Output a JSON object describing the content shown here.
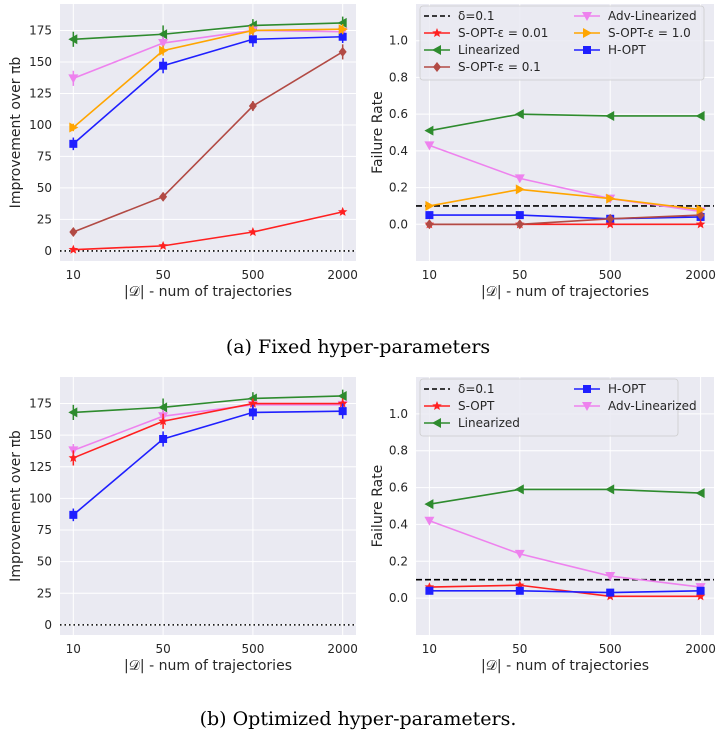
{
  "captions": {
    "a": "(a) Fixed hyper-parameters",
    "b": "(b) Optimized hyper-parameters."
  },
  "chart_data": [
    {
      "id": "a-improvement",
      "type": "line",
      "categories": [
        "10",
        "50",
        "500",
        "2000"
      ],
      "xlabel": "|𝒟| - num of trajectories",
      "ylabel": "Improvement over πb",
      "ylim": [
        -8,
        196
      ],
      "yticks": [
        0,
        25,
        50,
        75,
        100,
        125,
        150,
        175
      ],
      "grid": true,
      "reference_line": {
        "y": 0,
        "style": "dotted",
        "color": "#000000"
      },
      "series": [
        {
          "name": "Linearized",
          "color": "#2e8b2e",
          "marker": "tri-left",
          "values": [
            168,
            172,
            179,
            181
          ],
          "errors": [
            6,
            7,
            5,
            5
          ]
        },
        {
          "name": "Adv-Linearized",
          "color": "#ee82ee",
          "marker": "tri-down",
          "values": [
            137,
            165,
            175,
            174
          ],
          "errors": [
            6,
            5,
            4,
            4
          ]
        },
        {
          "name": "H-OPT",
          "color": "#1f1fff",
          "marker": "square",
          "values": [
            85,
            147,
            168,
            170
          ],
          "errors": [
            5,
            6,
            6,
            5
          ]
        },
        {
          "name": "S-OPT-ε = 0.01",
          "color": "#ff2020",
          "marker": "star",
          "values": [
            1,
            4,
            15,
            31
          ],
          "errors": [
            1,
            1,
            1,
            1
          ]
        },
        {
          "name": "S-OPT-ε = 0.1",
          "color": "#b24a44",
          "marker": "diamond",
          "values": [
            15,
            43,
            115,
            158
          ],
          "errors": [
            2,
            2,
            4,
            6
          ]
        },
        {
          "name": "S-OPT-ε = 1.0",
          "color": "#ffa500",
          "marker": "tri-right",
          "values": [
            98,
            159,
            175,
            176
          ],
          "errors": [
            3,
            4,
            4,
            4
          ]
        }
      ]
    },
    {
      "id": "a-failure",
      "type": "line",
      "categories": [
        "10",
        "50",
        "500",
        "2000"
      ],
      "xlabel": "|𝒟| - num of trajectories",
      "ylabel": "Failure Rate",
      "ylim": [
        -0.2,
        1.2
      ],
      "yticks": [
        0.0,
        0.2,
        0.4,
        0.6,
        0.8,
        1.0
      ],
      "grid": true,
      "legend": {
        "position": "top",
        "columns": 2,
        "order": [
          "delta",
          "S-OPT-ε = 0.01",
          "Linearized",
          "S-OPT-ε = 0.1",
          "Adv-Linearized",
          "S-OPT-ε = 1.0",
          "H-OPT"
        ]
      },
      "reference_line": {
        "y": 0.1,
        "style": "dashed",
        "color": "#000000",
        "name": "δ=0.1"
      },
      "series": [
        {
          "name": "Linearized",
          "color": "#2e8b2e",
          "marker": "tri-left",
          "values": [
            0.51,
            0.6,
            0.59,
            0.59
          ]
        },
        {
          "name": "Adv-Linearized",
          "color": "#ee82ee",
          "marker": "tri-down",
          "values": [
            0.43,
            0.25,
            0.14,
            0.07
          ]
        },
        {
          "name": "H-OPT",
          "color": "#1f1fff",
          "marker": "square",
          "values": [
            0.05,
            0.05,
            0.03,
            0.04
          ]
        },
        {
          "name": "S-OPT-ε = 0.01",
          "color": "#ff2020",
          "marker": "star",
          "values": [
            0.0,
            0.0,
            0.0,
            0.0
          ]
        },
        {
          "name": "S-OPT-ε = 0.1",
          "color": "#b24a44",
          "marker": "diamond",
          "values": [
            0.0,
            0.0,
            0.03,
            0.05
          ]
        },
        {
          "name": "S-OPT-ε = 1.0",
          "color": "#ffa500",
          "marker": "tri-right",
          "values": [
            0.1,
            0.19,
            0.14,
            0.08
          ]
        }
      ]
    },
    {
      "id": "b-improvement",
      "type": "line",
      "categories": [
        "10",
        "50",
        "500",
        "2000"
      ],
      "xlabel": "|𝒟| - num of trajectories",
      "ylabel": "Improvement over πb",
      "ylim": [
        -8,
        196
      ],
      "yticks": [
        0,
        25,
        50,
        75,
        100,
        125,
        150,
        175
      ],
      "grid": true,
      "reference_line": {
        "y": 0,
        "style": "dotted",
        "color": "#000000"
      },
      "series": [
        {
          "name": "Linearized",
          "color": "#2e8b2e",
          "marker": "tri-left",
          "values": [
            168,
            172,
            179,
            181
          ],
          "errors": [
            6,
            7,
            5,
            5
          ]
        },
        {
          "name": "Adv-Linearized",
          "color": "#ee82ee",
          "marker": "tri-down",
          "values": [
            138,
            165,
            174,
            174
          ],
          "errors": [
            5,
            5,
            4,
            4
          ]
        },
        {
          "name": "S-OPT",
          "color": "#ff2020",
          "marker": "star",
          "values": [
            132,
            161,
            175,
            175
          ],
          "errors": [
            6,
            6,
            4,
            4
          ]
        },
        {
          "name": "H-OPT",
          "color": "#1f1fff",
          "marker": "square",
          "values": [
            87,
            147,
            168,
            169
          ],
          "errors": [
            5,
            6,
            6,
            6
          ]
        }
      ]
    },
    {
      "id": "b-failure",
      "type": "line",
      "categories": [
        "10",
        "50",
        "500",
        "2000"
      ],
      "xlabel": "|𝒟| - num of trajectories",
      "ylabel": "Failure Rate",
      "ylim": [
        -0.2,
        1.2
      ],
      "yticks": [
        0.0,
        0.2,
        0.4,
        0.6,
        0.8,
        1.0
      ],
      "grid": true,
      "legend": {
        "position": "top",
        "columns": 2,
        "order": [
          "delta",
          "S-OPT",
          "Linearized",
          "H-OPT",
          "Adv-Linearized"
        ]
      },
      "reference_line": {
        "y": 0.1,
        "style": "dashed",
        "color": "#000000",
        "name": "δ=0.1"
      },
      "series": [
        {
          "name": "Linearized",
          "color": "#2e8b2e",
          "marker": "tri-left",
          "values": [
            0.51,
            0.59,
            0.59,
            0.57
          ]
        },
        {
          "name": "Adv-Linearized",
          "color": "#ee82ee",
          "marker": "tri-down",
          "values": [
            0.42,
            0.24,
            0.12,
            0.06
          ]
        },
        {
          "name": "S-OPT",
          "color": "#ff2020",
          "marker": "star",
          "values": [
            0.06,
            0.07,
            0.01,
            0.01
          ]
        },
        {
          "name": "H-OPT",
          "color": "#1f1fff",
          "marker": "square",
          "values": [
            0.04,
            0.04,
            0.03,
            0.04
          ]
        }
      ]
    }
  ]
}
